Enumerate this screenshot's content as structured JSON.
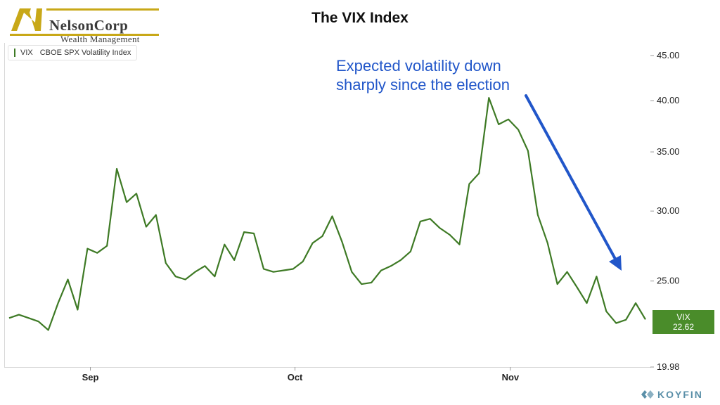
{
  "brand": {
    "name": "NelsonCorp",
    "subtitle": "Wealth Management",
    "logo_color": "#c8a818"
  },
  "chart_data": {
    "type": "line",
    "title": "The VIX Index",
    "legend": {
      "symbol": "VIX",
      "label": "CBOE SPX Volatility Index",
      "position": "top-left"
    },
    "series": [
      {
        "name": "VIX",
        "color": "#3e7a25",
        "x": [
          0,
          1,
          2,
          3,
          4,
          5,
          6,
          7,
          8,
          9,
          10,
          11,
          12,
          13,
          14,
          15,
          16,
          17,
          18,
          19,
          20,
          21,
          22,
          23,
          24,
          25,
          26,
          27,
          28,
          29,
          30,
          31,
          32,
          33,
          34,
          35,
          36,
          37,
          38,
          39,
          40,
          41,
          42,
          43,
          44,
          45,
          46,
          47,
          48,
          49,
          50,
          51,
          52,
          53,
          54,
          55,
          56,
          57,
          58,
          59,
          60,
          61,
          62,
          63,
          64,
          65
        ],
        "values": [
          22.7,
          22.9,
          22.7,
          22.5,
          22.0,
          23.6,
          25.1,
          23.2,
          27.2,
          26.9,
          27.4,
          33.5,
          30.7,
          31.4,
          28.8,
          29.7,
          26.2,
          25.3,
          25.1,
          25.6,
          26.0,
          25.3,
          27.5,
          26.4,
          28.4,
          28.3,
          25.8,
          25.6,
          25.7,
          25.8,
          26.3,
          27.6,
          28.1,
          29.6,
          27.7,
          25.6,
          24.8,
          24.9,
          25.7,
          26.0,
          26.4,
          27.0,
          29.2,
          29.4,
          28.7,
          28.2,
          27.5,
          32.2,
          33.1,
          40.3,
          37.6,
          38.1,
          37.1,
          35.1,
          29.7,
          27.6,
          24.8,
          25.6,
          24.6,
          23.6,
          25.3,
          23.1,
          22.4,
          22.6,
          23.6,
          22.62
        ]
      }
    ],
    "xticks": [
      {
        "label": "Sep",
        "x": 8.3
      },
      {
        "label": "Oct",
        "x": 29.2
      },
      {
        "label": "Nov",
        "x": 51.2
      }
    ],
    "yticks": [
      "19.98",
      "25.00",
      "30.00",
      "35.00",
      "40.00",
      "45.00"
    ],
    "ylim": [
      19.98,
      46.5
    ],
    "yscale": "log",
    "xlim": [
      -0.5,
      65.5
    ],
    "last_value": {
      "label": "VIX",
      "value": "22.62"
    },
    "annotation": {
      "text": "Expected volatility down sharply since the election",
      "color": "#2156c9"
    }
  },
  "footer": {
    "provider": "KOYFIN"
  }
}
